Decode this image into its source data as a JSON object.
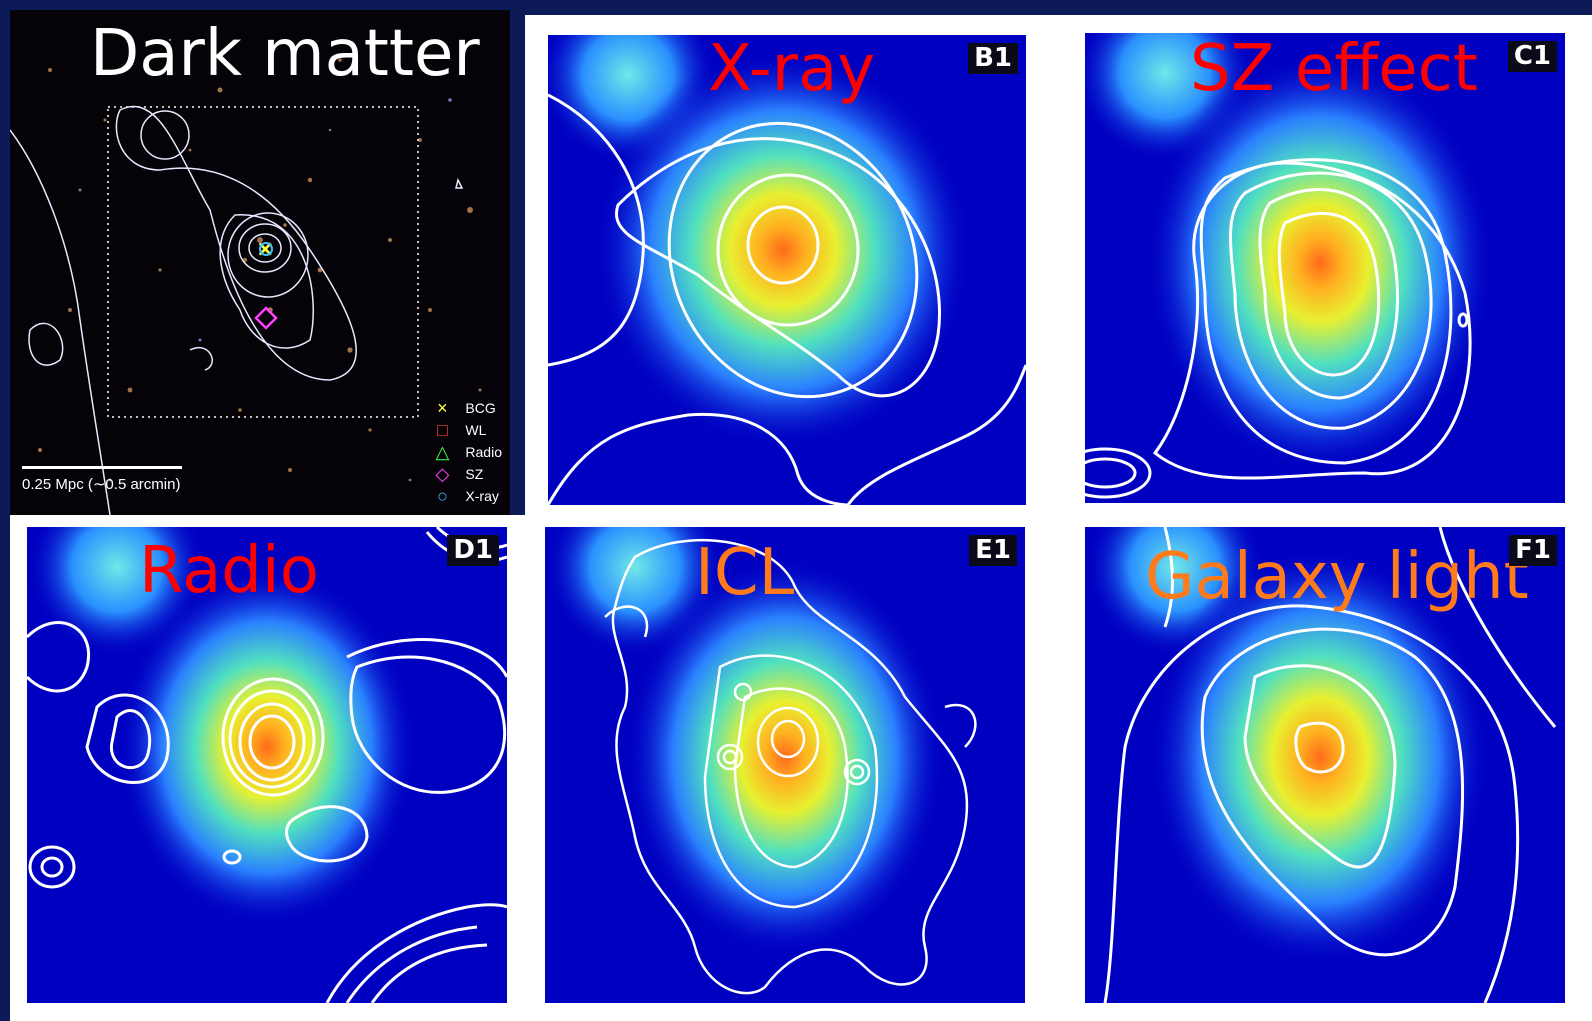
{
  "panels": {
    "dark_matter": {
      "title": "Dark matter",
      "scale_label": "0.25 Mpc (∼0.5 arcmin)",
      "legend": [
        {
          "symbol": "×",
          "label": "BCG",
          "color": "#ffff40"
        },
        {
          "symbol": "□",
          "label": "WL",
          "color": "#ff4040"
        },
        {
          "symbol": "△",
          "label": "Radio",
          "color": "#40ff40"
        },
        {
          "symbol": "◇",
          "label": "SZ",
          "color": "#ff40ff"
        },
        {
          "symbol": "○",
          "label": "X-ray",
          "color": "#40c0ff"
        }
      ]
    },
    "xray": {
      "title": "X-ray",
      "badge": "B1",
      "title_color": "#ff0000"
    },
    "sz": {
      "title": "SZ effect",
      "badge": "C1",
      "title_color": "#ff0000"
    },
    "radio": {
      "title": "Radio",
      "badge": "D1",
      "title_color": "#ff0000"
    },
    "icl": {
      "title": "ICL",
      "badge": "E1",
      "title_color": "#ff7a1a"
    },
    "galaxy": {
      "title": "Galaxy light",
      "badge": "F1",
      "title_color": "#ff7a1a"
    }
  },
  "colors": {
    "background": "#0c1a57",
    "heatmap_low": "#0000c0",
    "heatmap_peak": "#ff6a1a",
    "contour": "#ffffff"
  }
}
